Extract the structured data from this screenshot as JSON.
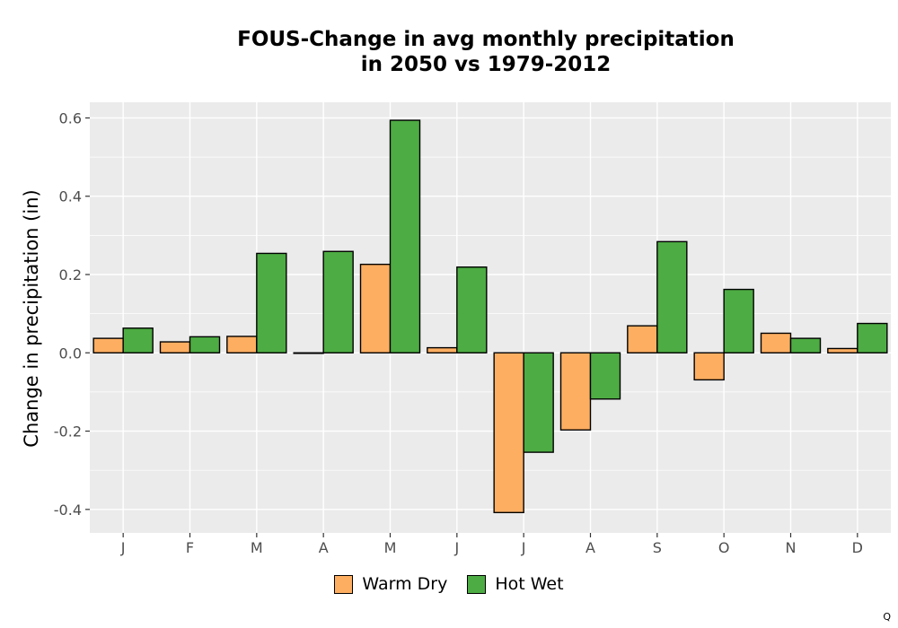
{
  "chart_data": {
    "type": "bar",
    "title_lines": [
      "FOUS-Change in avg monthly precipitation",
      "in 2050 vs 1979-2012"
    ],
    "xlabel": "",
    "ylabel": "Change in precipitation (in)",
    "categories": [
      "J",
      "F",
      "M",
      "A",
      "M",
      "J",
      "J",
      "A",
      "S",
      "O",
      "N",
      "D"
    ],
    "series": [
      {
        "name": "Warm Dry",
        "color": "#FDAE61",
        "values": [
          0.037,
          0.028,
          0.042,
          -0.001,
          0.226,
          0.013,
          -0.408,
          -0.197,
          0.069,
          -0.069,
          0.05,
          0.011
        ]
      },
      {
        "name": "Hot Wet",
        "color": "#4DAC43",
        "values": [
          0.063,
          0.041,
          0.254,
          0.259,
          0.594,
          0.219,
          -0.254,
          -0.118,
          0.284,
          0.162,
          0.037,
          0.075
        ]
      }
    ],
    "ylim": [
      -0.46,
      0.64
    ],
    "yticks": [
      -0.4,
      -0.2,
      0.0,
      0.2,
      0.4,
      0.6
    ],
    "ytick_labels": [
      "-0.4",
      "-0.2",
      "0.0",
      "0.2",
      "0.4",
      "0.6"
    ],
    "grid": true,
    "legend_position": "bottom",
    "panel_color": "#EBEBEB",
    "grid_color": "#FFFFFF"
  },
  "corner_mark": "Q"
}
